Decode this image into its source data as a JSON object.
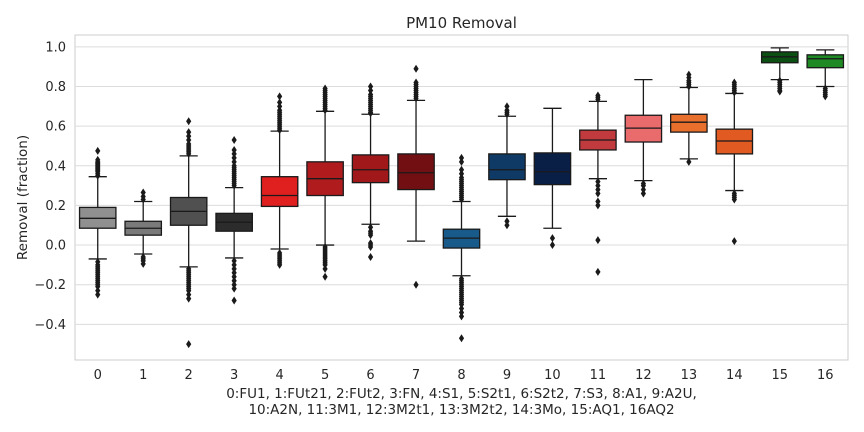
{
  "chart_data": {
    "type": "box",
    "title": "PM10 Removal",
    "ylabel": "Removal (fraction)",
    "xlabel_lines": [
      "0:FU1, 1:FUt21, 2:FUt2, 3:FN, 4:S1, 5:S2t1, 6:S2t2, 7:S3,  8:A1, 9:A2U,",
      "10:A2N, 11:3M1, 12:3M2t1, 13:3M2t2, 14:3Mo, 15:AQ1, 16AQ2"
    ],
    "ylim": [
      -0.58,
      1.06
    ],
    "yticks": [
      -0.4,
      -0.2,
      0.0,
      0.2,
      0.4,
      0.6,
      0.8,
      1.0
    ],
    "ytick_labels": [
      "−0.4",
      "−0.2",
      "0.0",
      "0.2",
      "0.4",
      "0.6",
      "0.8",
      "1.0"
    ],
    "grid": true,
    "categories": [
      "0",
      "1",
      "2",
      "3",
      "4",
      "5",
      "6",
      "7",
      "8",
      "9",
      "10",
      "11",
      "12",
      "13",
      "14",
      "15",
      "16"
    ],
    "boxes": [
      {
        "q1": 0.085,
        "median": 0.135,
        "q3": 0.19,
        "whislo": -0.07,
        "whishi": 0.345,
        "color": "#909090",
        "fliers": [
          0.35,
          0.36,
          0.37,
          0.375,
          0.38,
          0.385,
          0.39,
          0.395,
          0.4,
          0.405,
          0.41,
          0.415,
          0.42,
          0.43,
          0.475,
          -0.085,
          -0.1,
          -0.11,
          -0.12,
          -0.13,
          -0.14,
          -0.15,
          -0.16,
          -0.17,
          -0.18,
          -0.19,
          -0.2,
          -0.21,
          -0.23,
          -0.25
        ]
      },
      {
        "q1": 0.05,
        "median": 0.085,
        "q3": 0.12,
        "whislo": -0.045,
        "whishi": 0.22,
        "color": "#7a7a7a",
        "fliers": [
          0.23,
          0.245,
          0.265,
          -0.06,
          -0.07,
          -0.08,
          -0.095
        ]
      },
      {
        "q1": 0.1,
        "median": 0.17,
        "q3": 0.24,
        "whislo": -0.11,
        "whishi": 0.45,
        "color": "#505050",
        "fliers": [
          0.46,
          0.47,
          0.48,
          0.49,
          0.5,
          0.51,
          0.53,
          0.55,
          0.57,
          0.625,
          -0.12,
          -0.13,
          -0.14,
          -0.15,
          -0.16,
          -0.17,
          -0.18,
          -0.19,
          -0.2,
          -0.21,
          -0.22,
          -0.23,
          -0.25,
          -0.27,
          -0.5
        ]
      },
      {
        "q1": 0.07,
        "median": 0.115,
        "q3": 0.16,
        "whislo": -0.065,
        "whishi": 0.29,
        "color": "#2c2c2c",
        "fliers": [
          0.3,
          0.31,
          0.32,
          0.33,
          0.34,
          0.35,
          0.36,
          0.37,
          0.38,
          0.39,
          0.4,
          0.42,
          0.44,
          0.46,
          0.48,
          0.53,
          -0.08,
          -0.1,
          -0.12,
          -0.14,
          -0.16,
          -0.18,
          -0.2,
          -0.22,
          -0.28
        ]
      },
      {
        "q1": 0.195,
        "median": 0.25,
        "q3": 0.345,
        "whislo": -0.02,
        "whishi": 0.575,
        "color": "#e0201e",
        "fliers": [
          0.58,
          0.59,
          0.6,
          0.61,
          0.62,
          0.63,
          0.64,
          0.65,
          0.66,
          0.67,
          0.68,
          0.7,
          0.72,
          0.75,
          -0.04,
          -0.05,
          -0.06,
          -0.07,
          -0.08,
          -0.09,
          -0.1
        ]
      },
      {
        "q1": 0.25,
        "median": 0.335,
        "q3": 0.42,
        "whislo": 0.0,
        "whishi": 0.675,
        "color": "#b01c1e",
        "fliers": [
          0.68,
          0.69,
          0.7,
          0.71,
          0.72,
          0.73,
          0.74,
          0.75,
          0.76,
          0.77,
          0.78,
          0.79,
          -0.01,
          -0.02,
          -0.03,
          -0.04,
          -0.05,
          -0.06,
          -0.07,
          -0.08,
          -0.09,
          -0.1,
          -0.12,
          -0.16
        ]
      },
      {
        "q1": 0.315,
        "median": 0.38,
        "q3": 0.455,
        "whislo": 0.105,
        "whishi": 0.66,
        "color": "#a0181a",
        "fliers": [
          0.665,
          0.67,
          0.68,
          0.69,
          0.7,
          0.71,
          0.72,
          0.73,
          0.74,
          0.75,
          0.76,
          0.78,
          0.8,
          0.09,
          0.07,
          0.06,
          0.05,
          0.01,
          0.0,
          -0.01,
          -0.06
        ]
      },
      {
        "q1": 0.28,
        "median": 0.365,
        "q3": 0.46,
        "whislo": 0.02,
        "whishi": 0.73,
        "color": "#720f12",
        "fliers": [
          0.74,
          0.75,
          0.76,
          0.77,
          0.78,
          0.79,
          0.8,
          0.81,
          0.82,
          0.89,
          -0.2
        ]
      },
      {
        "q1": -0.015,
        "median": 0.035,
        "q3": 0.08,
        "whislo": -0.155,
        "whishi": 0.22,
        "color": "#185a8a",
        "fliers": [
          0.23,
          0.24,
          0.25,
          0.26,
          0.27,
          0.28,
          0.29,
          0.3,
          0.31,
          0.32,
          0.33,
          0.34,
          0.36,
          0.38,
          0.42,
          0.44,
          -0.17,
          -0.18,
          -0.19,
          -0.2,
          -0.21,
          -0.22,
          -0.23,
          -0.24,
          -0.25,
          -0.26,
          -0.27,
          -0.28,
          -0.29,
          -0.3,
          -0.32,
          -0.34,
          -0.36,
          -0.47
        ]
      },
      {
        "q1": 0.33,
        "median": 0.38,
        "q3": 0.46,
        "whislo": 0.145,
        "whishi": 0.65,
        "color": "#0f3a66",
        "fliers": [
          0.66,
          0.67,
          0.68,
          0.7,
          0.12,
          0.1
        ]
      },
      {
        "q1": 0.305,
        "median": 0.37,
        "q3": 0.465,
        "whislo": 0.085,
        "whishi": 0.69,
        "color": "#0a1f46",
        "fliers": [
          0.035,
          0.0
        ]
      },
      {
        "q1": 0.48,
        "median": 0.53,
        "q3": 0.58,
        "whislo": 0.335,
        "whishi": 0.725,
        "color": "#c13a3e",
        "fliers": [
          0.735,
          0.745,
          0.755,
          0.32,
          0.3,
          0.28,
          0.26,
          0.22,
          0.2,
          0.025,
          -0.135
        ]
      },
      {
        "q1": 0.52,
        "median": 0.59,
        "q3": 0.655,
        "whislo": 0.325,
        "whishi": 0.835,
        "color": "#e96b6c",
        "fliers": [
          0.31,
          0.3,
          0.28,
          0.26
        ]
      },
      {
        "q1": 0.57,
        "median": 0.62,
        "q3": 0.66,
        "whislo": 0.435,
        "whishi": 0.795,
        "color": "#e8702c",
        "fliers": [
          0.8,
          0.81,
          0.82,
          0.83,
          0.845,
          0.86,
          0.42
        ]
      },
      {
        "q1": 0.46,
        "median": 0.525,
        "q3": 0.585,
        "whislo": 0.275,
        "whishi": 0.765,
        "color": "#e05a22",
        "fliers": [
          0.77,
          0.78,
          0.79,
          0.8,
          0.81,
          0.82,
          0.26,
          0.25,
          0.24,
          0.23,
          0.02
        ]
      },
      {
        "q1": 0.92,
        "median": 0.95,
        "q3": 0.975,
        "whislo": 0.835,
        "whishi": 0.995,
        "color": "#0b4f12",
        "fliers": [
          0.83,
          0.82,
          0.81,
          0.8,
          0.79,
          0.78,
          0.775
        ]
      },
      {
        "q1": 0.895,
        "median": 0.94,
        "q3": 0.96,
        "whislo": 0.8,
        "whishi": 0.985,
        "color": "#1f8a24",
        "fliers": [
          0.79,
          0.78,
          0.77,
          0.76,
          0.75
        ]
      }
    ]
  }
}
